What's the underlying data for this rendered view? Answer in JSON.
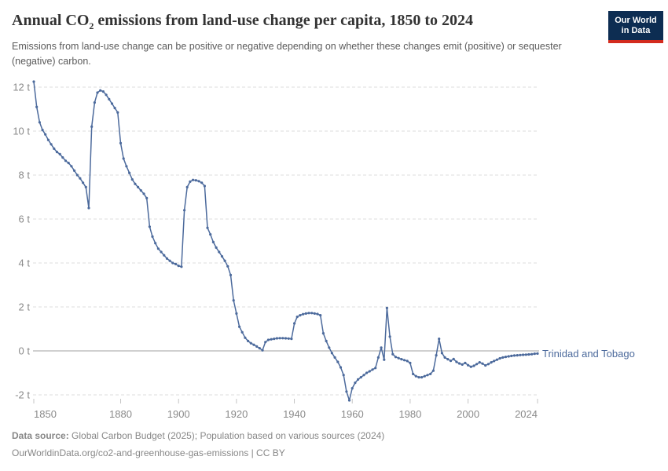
{
  "header": {
    "title_pre": "Annual CO",
    "title_sub": "2",
    "title_post": " emissions from land-use change per capita, 1850 to 2024",
    "subtitle": "Emissions from land-use change can be positive or negative depending on whether these changes emit (positive) or sequester (negative) carbon.",
    "logo_line1": "Our World",
    "logo_line2": "in Data"
  },
  "chart_data": {
    "type": "line",
    "title": "Annual CO2 emissions from land-use change per capita, 1850 to 2024",
    "entity_label": "Trinidad and Tobago",
    "unit": "t",
    "x_start": 1850,
    "x_end": 2024,
    "x_step": 1,
    "values": [
      12.25,
      11.1,
      10.4,
      10.05,
      9.85,
      9.6,
      9.4,
      9.2,
      9.05,
      8.95,
      8.8,
      8.65,
      8.55,
      8.4,
      8.2,
      8.0,
      7.85,
      7.65,
      7.45,
      6.5,
      10.2,
      11.3,
      11.75,
      11.85,
      11.8,
      11.65,
      11.45,
      11.25,
      11.05,
      10.85,
      9.45,
      8.75,
      8.4,
      8.1,
      7.8,
      7.6,
      7.45,
      7.3,
      7.15,
      6.95,
      5.65,
      5.2,
      4.9,
      4.65,
      4.5,
      4.35,
      4.2,
      4.1,
      4.0,
      3.95,
      3.87,
      3.83,
      6.4,
      7.45,
      7.7,
      7.78,
      7.76,
      7.72,
      7.65,
      7.5,
      5.6,
      5.3,
      4.95,
      4.7,
      4.5,
      4.3,
      4.1,
      3.85,
      3.45,
      2.3,
      1.7,
      1.1,
      0.85,
      0.6,
      0.45,
      0.35,
      0.28,
      0.2,
      0.12,
      0.03,
      0.4,
      0.5,
      0.53,
      0.55,
      0.57,
      0.58,
      0.58,
      0.57,
      0.56,
      0.55,
      1.25,
      1.55,
      1.62,
      1.67,
      1.7,
      1.72,
      1.72,
      1.7,
      1.68,
      1.62,
      0.8,
      0.45,
      0.15,
      -0.1,
      -0.3,
      -0.5,
      -0.75,
      -1.1,
      -1.85,
      -2.25,
      -1.7,
      -1.45,
      -1.3,
      -1.2,
      -1.1,
      -1.0,
      -0.93,
      -0.85,
      -0.78,
      -0.3,
      0.15,
      -0.4,
      1.95,
      0.65,
      -0.15,
      -0.28,
      -0.33,
      -0.38,
      -0.42,
      -0.46,
      -0.55,
      -1.05,
      -1.15,
      -1.2,
      -1.2,
      -1.15,
      -1.1,
      -1.05,
      -0.9,
      -0.2,
      0.55,
      -0.1,
      -0.3,
      -0.38,
      -0.45,
      -0.37,
      -0.5,
      -0.57,
      -0.62,
      -0.55,
      -0.65,
      -0.72,
      -0.68,
      -0.6,
      -0.52,
      -0.58,
      -0.66,
      -0.6,
      -0.52,
      -0.46,
      -0.4,
      -0.34,
      -0.3,
      -0.27,
      -0.25,
      -0.23,
      -0.21,
      -0.2,
      -0.19,
      -0.18,
      -0.17,
      -0.16,
      -0.15,
      -0.13,
      -0.12
    ],
    "yticks": [
      -2,
      0,
      2,
      4,
      6,
      8,
      10,
      12
    ],
    "ytick_suffix": " t",
    "xticks": [
      1850,
      1880,
      1900,
      1920,
      1940,
      1960,
      1980,
      2000,
      2024
    ],
    "ylim": [
      -2.5,
      12.5
    ],
    "grid": "horizontal-dashed",
    "zero_line": true,
    "legend_position": "end-of-line-label"
  },
  "colors": {
    "line": "#4c6a9c",
    "entity_label": "#4c6a9c",
    "grid": "#dcdcdc",
    "zero_line": "#a0a0a0",
    "axis_text": "#8a8a8a",
    "tick_mark": "#c4c4c4",
    "title": "#333333",
    "subtitle": "#5b5b5b",
    "footer": "#878787",
    "logo_bg": "#0d2d52",
    "logo_red": "#d32b1e"
  },
  "footer": {
    "source_label": "Data source:",
    "source_rest": " Global Carbon Budget (2025); Population based on various sources (2024)",
    "url_line": "OurWorldinData.org/co2-and-greenhouse-gas-emissions | CC BY"
  }
}
